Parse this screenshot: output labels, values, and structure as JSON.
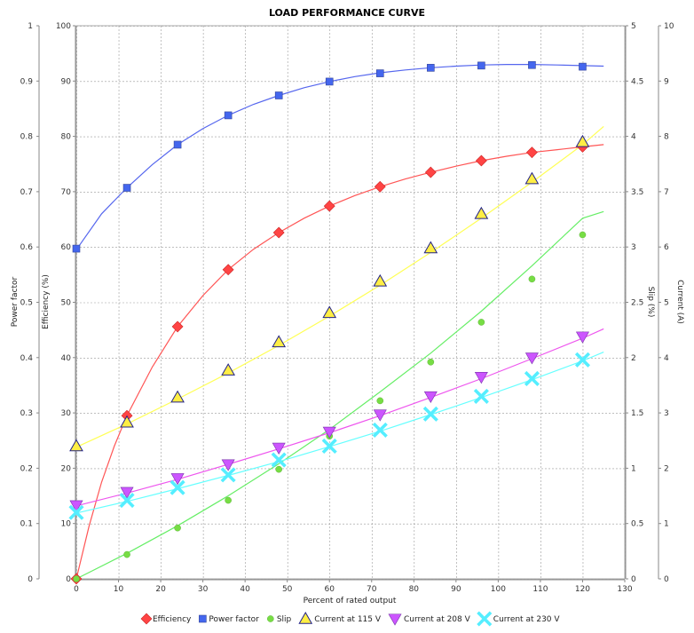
{
  "chart_data": {
    "type": "line",
    "title": "LOAD PERFORMANCE CURVE",
    "xlabel": "Percent of rated output",
    "xlim": [
      0,
      130
    ],
    "x_ticks": [
      0,
      10,
      20,
      30,
      40,
      50,
      60,
      70,
      80,
      90,
      100,
      110,
      120,
      130
    ],
    "grid": true,
    "legend_position": "bottom",
    "axes": {
      "power_factor": {
        "label": "Power factor",
        "side": "left-outer",
        "range": [
          0,
          1
        ],
        "ticks": [
          "0",
          "0.1",
          "0.2",
          "0.3",
          "0.4",
          "0.5",
          "0.6",
          "0.7",
          "0.8",
          "0.9",
          "1"
        ]
      },
      "efficiency": {
        "label": "Efficiency (%)",
        "side": "left-inner",
        "range": [
          0,
          100
        ],
        "ticks": [
          "0",
          "10",
          "20",
          "30",
          "40",
          "50",
          "60",
          "70",
          "80",
          "90",
          "100"
        ]
      },
      "slip": {
        "label": "Slip (%)",
        "side": "right-inner",
        "range": [
          0,
          5
        ],
        "ticks": [
          "0",
          "0.5",
          "1",
          "1.5",
          "2",
          "2.5",
          "3",
          "3.5",
          "4",
          "4.5",
          "5"
        ]
      },
      "current": {
        "label": "Current (A)",
        "side": "right-outer",
        "range": [
          0,
          10
        ],
        "ticks": [
          "0",
          "1",
          "2",
          "3",
          "4",
          "5",
          "6",
          "7",
          "8",
          "9",
          "10"
        ]
      }
    },
    "series": [
      {
        "name": "Efficiency",
        "axis": "efficiency",
        "color": "#ff4444",
        "line_color": "#ff5555",
        "marker": "diamond",
        "points": [
          [
            0,
            0
          ],
          [
            12,
            29.5
          ],
          [
            24,
            45.6
          ],
          [
            36,
            55.9
          ],
          [
            48,
            62.6
          ],
          [
            60,
            67.4
          ],
          [
            72,
            70.9
          ],
          [
            84,
            73.5
          ],
          [
            96,
            75.6
          ],
          [
            108,
            77.1
          ],
          [
            120,
            78.1
          ]
        ],
        "curve": [
          [
            0,
            0
          ],
          [
            3,
            9.5
          ],
          [
            6,
            17.5
          ],
          [
            9,
            24
          ],
          [
            12,
            29.5
          ],
          [
            18,
            38.3
          ],
          [
            24,
            45.6
          ],
          [
            30,
            51.2
          ],
          [
            36,
            55.9
          ],
          [
            42,
            59.6
          ],
          [
            48,
            62.6
          ],
          [
            54,
            65.2
          ],
          [
            60,
            67.4
          ],
          [
            66,
            69.3
          ],
          [
            72,
            70.9
          ],
          [
            78,
            72.3
          ],
          [
            84,
            73.5
          ],
          [
            90,
            74.6
          ],
          [
            96,
            75.6
          ],
          [
            102,
            76.4
          ],
          [
            108,
            77.1
          ],
          [
            114,
            77.6
          ],
          [
            120,
            78.1
          ],
          [
            125,
            78.5
          ]
        ]
      },
      {
        "name": "Power factor",
        "axis": "power_factor",
        "color": "#4466ee",
        "line_color": "#5566ee",
        "marker": "square",
        "points": [
          [
            0,
            0.597
          ],
          [
            12,
            0.707
          ],
          [
            24,
            0.785
          ],
          [
            36,
            0.838
          ],
          [
            48,
            0.874
          ],
          [
            60,
            0.899
          ],
          [
            72,
            0.914
          ],
          [
            84,
            0.924
          ],
          [
            96,
            0.928
          ],
          [
            108,
            0.929
          ],
          [
            120,
            0.926
          ]
        ],
        "curve": [
          [
            0,
            0.595
          ],
          [
            6,
            0.66
          ],
          [
            12,
            0.707
          ],
          [
            18,
            0.749
          ],
          [
            24,
            0.785
          ],
          [
            30,
            0.814
          ],
          [
            36,
            0.838
          ],
          [
            42,
            0.858
          ],
          [
            48,
            0.874
          ],
          [
            54,
            0.888
          ],
          [
            60,
            0.899
          ],
          [
            66,
            0.908
          ],
          [
            72,
            0.915
          ],
          [
            78,
            0.92
          ],
          [
            84,
            0.924
          ],
          [
            90,
            0.927
          ],
          [
            96,
            0.929
          ],
          [
            102,
            0.93
          ],
          [
            108,
            0.93
          ],
          [
            114,
            0.929
          ],
          [
            120,
            0.928
          ],
          [
            125,
            0.927
          ]
        ]
      },
      {
        "name": "Slip",
        "axis": "slip",
        "color": "#77dd44",
        "line_color": "#66ee66",
        "marker": "circle",
        "points": [
          [
            0,
            0
          ],
          [
            12,
            0.22
          ],
          [
            24,
            0.46
          ],
          [
            36,
            0.71
          ],
          [
            48,
            0.99
          ],
          [
            60,
            1.29
          ],
          [
            72,
            1.61
          ],
          [
            84,
            1.96
          ],
          [
            96,
            2.32
          ],
          [
            108,
            2.71
          ],
          [
            120,
            3.11
          ]
        ],
        "curve": [
          [
            0,
            0
          ],
          [
            12,
            0.23
          ],
          [
            24,
            0.48
          ],
          [
            36,
            0.75
          ],
          [
            48,
            1.04
          ],
          [
            60,
            1.35
          ],
          [
            72,
            1.69
          ],
          [
            84,
            2.04
          ],
          [
            96,
            2.42
          ],
          [
            108,
            2.83
          ],
          [
            120,
            3.26
          ],
          [
            125,
            3.32
          ]
        ]
      },
      {
        "name": "Current at 115 V",
        "axis": "current",
        "color": "#ffee44",
        "line_color": "#ffff55",
        "marker": "triangle",
        "points": [
          [
            0,
            2.4
          ],
          [
            12,
            2.83
          ],
          [
            24,
            3.28
          ],
          [
            36,
            3.77
          ],
          [
            48,
            4.28
          ],
          [
            60,
            4.81
          ],
          [
            72,
            5.38
          ],
          [
            84,
            5.98
          ],
          [
            96,
            6.6
          ],
          [
            108,
            7.23
          ],
          [
            120,
            7.9
          ]
        ],
        "curve": [
          [
            0,
            2.38
          ],
          [
            12,
            2.8
          ],
          [
            24,
            3.25
          ],
          [
            36,
            3.72
          ],
          [
            48,
            4.22
          ],
          [
            60,
            4.75
          ],
          [
            72,
            5.31
          ],
          [
            84,
            5.9
          ],
          [
            96,
            6.52
          ],
          [
            108,
            7.17
          ],
          [
            120,
            7.85
          ],
          [
            125,
            8.18
          ]
        ]
      },
      {
        "name": "Current at 208 V",
        "axis": "current",
        "color": "#cc55ff",
        "line_color": "#ee55ee",
        "marker": "triangle-down",
        "points": [
          [
            0,
            1.33
          ],
          [
            12,
            1.57
          ],
          [
            24,
            1.82
          ],
          [
            36,
            2.07
          ],
          [
            48,
            2.37
          ],
          [
            60,
            2.66
          ],
          [
            72,
            2.97
          ],
          [
            84,
            3.3
          ],
          [
            96,
            3.65
          ],
          [
            108,
            4.0
          ],
          [
            120,
            4.38
          ]
        ],
        "curve": [
          [
            0,
            1.32
          ],
          [
            12,
            1.55
          ],
          [
            24,
            1.8
          ],
          [
            36,
            2.07
          ],
          [
            48,
            2.35
          ],
          [
            60,
            2.64
          ],
          [
            72,
            2.95
          ],
          [
            84,
            3.28
          ],
          [
            96,
            3.62
          ],
          [
            108,
            3.98
          ],
          [
            120,
            4.35
          ],
          [
            125,
            4.52
          ]
        ]
      },
      {
        "name": "Current at 230 V",
        "axis": "current",
        "color": "#55eeff",
        "line_color": "#66ffff",
        "marker": "x",
        "points": [
          [
            0,
            1.2
          ],
          [
            12,
            1.42
          ],
          [
            24,
            1.65
          ],
          [
            36,
            1.88
          ],
          [
            48,
            2.15
          ],
          [
            60,
            2.4
          ],
          [
            72,
            2.69
          ],
          [
            84,
            2.98
          ],
          [
            96,
            3.3
          ],
          [
            108,
            3.62
          ],
          [
            120,
            3.96
          ]
        ],
        "curve": [
          [
            0,
            1.19
          ],
          [
            12,
            1.4
          ],
          [
            24,
            1.63
          ],
          [
            36,
            1.87
          ],
          [
            48,
            2.12
          ],
          [
            60,
            2.39
          ],
          [
            72,
            2.67
          ],
          [
            84,
            2.97
          ],
          [
            96,
            3.28
          ],
          [
            108,
            3.6
          ],
          [
            120,
            3.94
          ],
          [
            125,
            4.1
          ]
        ]
      }
    ]
  }
}
